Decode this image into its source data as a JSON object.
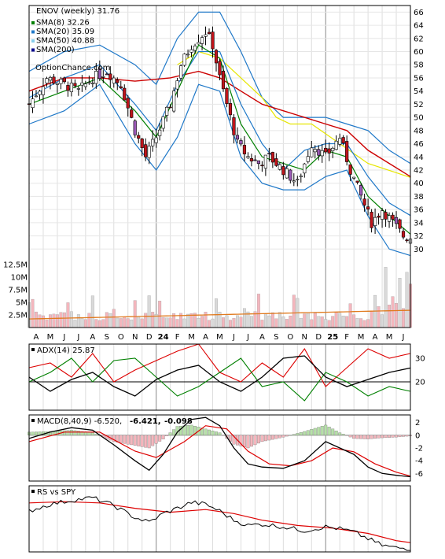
{
  "chart_data": [
    {
      "type": "candlestick",
      "panel": "price",
      "title": "ENOV (weekly) 31.76",
      "watermark": "OptionChance.com",
      "legend": [
        {
          "label": "SMA(8) 32.26",
          "color": "#008000"
        },
        {
          "label": "SMA(20) 35.09",
          "color": "#1f78c8"
        },
        {
          "label": "SMA(50) 40.88",
          "color": "#87ceeb"
        },
        {
          "label": "SMA(200)",
          "color": "#00008b"
        }
      ],
      "legend_placement": "top-left",
      "y_ticks": [
        30,
        32,
        34,
        36,
        38,
        40,
        42,
        44,
        46,
        48,
        50,
        52,
        54,
        56,
        58,
        60,
        62,
        64,
        66
      ],
      "ylim": [
        28,
        67
      ],
      "x_labels": [
        "A",
        "M",
        "J",
        "J",
        "A",
        "S",
        "O",
        "N",
        "D",
        "24",
        "F",
        "M",
        "A",
        "M",
        "J",
        "J",
        "A",
        "S",
        "O",
        "N",
        "D",
        "25",
        "F",
        "M",
        "A",
        "M",
        "J"
      ],
      "close_series": [
        [
          0,
          52
        ],
        [
          5,
          56
        ],
        [
          10,
          55
        ],
        [
          14,
          54
        ],
        [
          18,
          56
        ],
        [
          22,
          57
        ],
        [
          26,
          55
        ],
        [
          30,
          48
        ],
        [
          33,
          44
        ],
        [
          36,
          47
        ],
        [
          40,
          52
        ],
        [
          43,
          58
        ],
        [
          46,
          61
        ],
        [
          48,
          62
        ],
        [
          50,
          63
        ],
        [
          52,
          61
        ],
        [
          54,
          56
        ],
        [
          56,
          52
        ],
        [
          59,
          46
        ],
        [
          62,
          44
        ],
        [
          65,
          43
        ],
        [
          68,
          44
        ],
        [
          72,
          42
        ],
        [
          76,
          40
        ],
        [
          80,
          46
        ],
        [
          84,
          44
        ],
        [
          88,
          47
        ],
        [
          91,
          42
        ],
        [
          94,
          38
        ],
        [
          97,
          34
        ],
        [
          100,
          36
        ],
        [
          103,
          34
        ],
        [
          106,
          32
        ],
        [
          108,
          31.76
        ]
      ],
      "sma8_series": [
        [
          0,
          52
        ],
        [
          10,
          54
        ],
        [
          20,
          56
        ],
        [
          30,
          51
        ],
        [
          36,
          47
        ],
        [
          42,
          54
        ],
        [
          48,
          61
        ],
        [
          54,
          59
        ],
        [
          60,
          49
        ],
        [
          66,
          44
        ],
        [
          72,
          43
        ],
        [
          78,
          42
        ],
        [
          84,
          45
        ],
        [
          90,
          44
        ],
        [
          96,
          38
        ],
        [
          102,
          35
        ],
        [
          108,
          32.26
        ]
      ],
      "sma20_series": [
        [
          0,
          53
        ],
        [
          10,
          56
        ],
        [
          20,
          58
        ],
        [
          30,
          52
        ],
        [
          36,
          48
        ],
        [
          42,
          55
        ],
        [
          48,
          60
        ],
        [
          54,
          60
        ],
        [
          60,
          52
        ],
        [
          66,
          46
        ],
        [
          72,
          42
        ],
        [
          78,
          45
        ],
        [
          84,
          46
        ],
        [
          90,
          46
        ],
        [
          96,
          41
        ],
        [
          102,
          37
        ],
        [
          108,
          35.09
        ]
      ],
      "bb_upper_series": [
        [
          0,
          57
        ],
        [
          10,
          60
        ],
        [
          20,
          61
        ],
        [
          30,
          58
        ],
        [
          36,
          55
        ],
        [
          42,
          62
        ],
        [
          48,
          66
        ],
        [
          54,
          66
        ],
        [
          60,
          60
        ],
        [
          66,
          53
        ],
        [
          72,
          50
        ],
        [
          78,
          50
        ],
        [
          84,
          50
        ],
        [
          90,
          49
        ],
        [
          96,
          48
        ],
        [
          102,
          45
        ],
        [
          108,
          43
        ]
      ],
      "bb_lower_series": [
        [
          0,
          49
        ],
        [
          10,
          51
        ],
        [
          20,
          55
        ],
        [
          30,
          46
        ],
        [
          36,
          42
        ],
        [
          42,
          47
        ],
        [
          48,
          55
        ],
        [
          54,
          54
        ],
        [
          60,
          44
        ],
        [
          66,
          40
        ],
        [
          72,
          39
        ],
        [
          78,
          39
        ],
        [
          84,
          41
        ],
        [
          90,
          42
        ],
        [
          96,
          35
        ],
        [
          102,
          30
        ],
        [
          108,
          29
        ]
      ],
      "sma50_series": [
        [
          42,
          58
        ],
        [
          48,
          60
        ],
        [
          54,
          59
        ],
        [
          60,
          56
        ],
        [
          66,
          53
        ],
        [
          70,
          50
        ],
        [
          74,
          49
        ],
        [
          80,
          49
        ],
        [
          88,
          46
        ],
        [
          96,
          43
        ],
        [
          108,
          40.88
        ]
      ],
      "sma_red_series": [
        [
          0,
          54
        ],
        [
          10,
          56
        ],
        [
          20,
          56
        ],
        [
          30,
          55.5
        ],
        [
          40,
          56
        ],
        [
          48,
          57
        ],
        [
          54,
          56
        ],
        [
          60,
          54
        ],
        [
          66,
          52
        ],
        [
          72,
          51
        ],
        [
          78,
          50
        ],
        [
          84,
          49
        ],
        [
          90,
          48
        ],
        [
          96,
          45
        ],
        [
          102,
          43
        ],
        [
          108,
          41
        ]
      ],
      "volume_panel": {
        "y_ticks": [
          "2.5M",
          "5M",
          "7.5M",
          "10M",
          "12.5M"
        ],
        "y_tick_values": [
          2.5,
          5,
          7.5,
          10,
          12.5
        ],
        "ylim": [
          0,
          13
        ]
      },
      "grid": true
    },
    {
      "type": "line",
      "panel": "adx",
      "legend": [
        "ADX(14) 25.87"
      ],
      "y_ticks": [
        20,
        30
      ],
      "ylim": [
        8,
        36
      ],
      "adx_series": [
        [
          0,
          22
        ],
        [
          6,
          16
        ],
        [
          12,
          21
        ],
        [
          18,
          24
        ],
        [
          24,
          18
        ],
        [
          30,
          14
        ],
        [
          36,
          21
        ],
        [
          42,
          25
        ],
        [
          48,
          27
        ],
        [
          54,
          20
        ],
        [
          60,
          16
        ],
        [
          66,
          22
        ],
        [
          72,
          30
        ],
        [
          78,
          31
        ],
        [
          84,
          22
        ],
        [
          90,
          18
        ],
        [
          96,
          21
        ],
        [
          102,
          24
        ],
        [
          108,
          25.87
        ]
      ],
      "plus_di_series": [
        [
          0,
          26
        ],
        [
          6,
          28
        ],
        [
          12,
          22
        ],
        [
          18,
          32
        ],
        [
          24,
          20
        ],
        [
          30,
          25
        ],
        [
          36,
          29
        ],
        [
          42,
          33
        ],
        [
          48,
          36
        ],
        [
          54,
          24
        ],
        [
          60,
          20
        ],
        [
          66,
          28
        ],
        [
          72,
          22
        ],
        [
          78,
          34
        ],
        [
          84,
          18
        ],
        [
          90,
          26
        ],
        [
          96,
          34
        ],
        [
          102,
          30
        ],
        [
          108,
          32
        ]
      ],
      "minus_di_series": [
        [
          0,
          20
        ],
        [
          6,
          24
        ],
        [
          12,
          30
        ],
        [
          18,
          20
        ],
        [
          24,
          29
        ],
        [
          30,
          30
        ],
        [
          36,
          22
        ],
        [
          42,
          14
        ],
        [
          48,
          18
        ],
        [
          54,
          24
        ],
        [
          60,
          30
        ],
        [
          66,
          18
        ],
        [
          72,
          20
        ],
        [
          78,
          12
        ],
        [
          84,
          24
        ],
        [
          90,
          20
        ],
        [
          96,
          14
        ],
        [
          102,
          18
        ],
        [
          108,
          16
        ]
      ]
    },
    {
      "type": "bar",
      "panel": "macd",
      "legend": [
        "MACD(8,40,9) -6.520,",
        "-6.421,",
        "-0.098"
      ],
      "legend_colors": [
        "#000000",
        "#ff0000",
        "#1f78c8"
      ],
      "y_ticks": [
        -6,
        -4,
        -2,
        0,
        2
      ],
      "ylim": [
        -7.2,
        3.2
      ],
      "macd_series": [
        [
          0,
          -0.5
        ],
        [
          6,
          0.5
        ],
        [
          12,
          1.2
        ],
        [
          18,
          0.8
        ],
        [
          24,
          -1.5
        ],
        [
          30,
          -4
        ],
        [
          34,
          -5.5
        ],
        [
          38,
          -3
        ],
        [
          42,
          0.5
        ],
        [
          46,
          2.5
        ],
        [
          50,
          2.8
        ],
        [
          54,
          1.5
        ],
        [
          58,
          -2
        ],
        [
          62,
          -4.5
        ],
        [
          66,
          -5
        ],
        [
          72,
          -5.2
        ],
        [
          78,
          -4
        ],
        [
          84,
          -1
        ],
        [
          88,
          -2
        ],
        [
          92,
          -3
        ],
        [
          96,
          -5
        ],
        [
          100,
          -6
        ],
        [
          104,
          -6.3
        ],
        [
          108,
          -6.52
        ]
      ],
      "signal_series": [
        [
          0,
          -1
        ],
        [
          10,
          0.5
        ],
        [
          20,
          0.5
        ],
        [
          30,
          -2.5
        ],
        [
          36,
          -3.5
        ],
        [
          44,
          -1
        ],
        [
          50,
          1.5
        ],
        [
          56,
          1
        ],
        [
          62,
          -2.5
        ],
        [
          68,
          -4.5
        ],
        [
          74,
          -4.8
        ],
        [
          80,
          -4
        ],
        [
          86,
          -2
        ],
        [
          92,
          -2.6
        ],
        [
          98,
          -4.5
        ],
        [
          104,
          -5.8
        ],
        [
          108,
          -6.42
        ]
      ],
      "histogram_series": [
        [
          0,
          0.5
        ],
        [
          6,
          0.6
        ],
        [
          12,
          0.8
        ],
        [
          18,
          0.4
        ],
        [
          24,
          -1
        ],
        [
          30,
          -1.6
        ],
        [
          34,
          -2
        ],
        [
          38,
          -0.6
        ],
        [
          42,
          1.4
        ],
        [
          46,
          1.6
        ],
        [
          50,
          1
        ],
        [
          54,
          0.4
        ],
        [
          58,
          -1.4
        ],
        [
          62,
          -2
        ],
        [
          66,
          -1
        ],
        [
          72,
          -0.3
        ],
        [
          78,
          0.6
        ],
        [
          84,
          1.6
        ],
        [
          88,
          0.4
        ],
        [
          92,
          -0.5
        ],
        [
          96,
          -0.6
        ],
        [
          100,
          -0.4
        ],
        [
          104,
          -0.3
        ],
        [
          108,
          -0.1
        ]
      ]
    },
    {
      "type": "line",
      "panel": "relative-strength",
      "legend": [
        "RS vs SPY"
      ],
      "rs_series": [
        [
          0,
          0.62
        ],
        [
          6,
          0.72
        ],
        [
          12,
          0.78
        ],
        [
          18,
          0.82
        ],
        [
          24,
          0.7
        ],
        [
          30,
          0.52
        ],
        [
          34,
          0.45
        ],
        [
          38,
          0.58
        ],
        [
          42,
          0.66
        ],
        [
          46,
          0.75
        ],
        [
          50,
          0.72
        ],
        [
          54,
          0.62
        ],
        [
          58,
          0.48
        ],
        [
          62,
          0.4
        ],
        [
          66,
          0.42
        ],
        [
          72,
          0.38
        ],
        [
          78,
          0.32
        ],
        [
          84,
          0.38
        ],
        [
          88,
          0.35
        ],
        [
          92,
          0.3
        ],
        [
          96,
          0.2
        ],
        [
          100,
          0.1
        ],
        [
          104,
          0.06
        ],
        [
          108,
          0.05
        ]
      ],
      "rs_ma_series": [
        [
          0,
          0.74
        ],
        [
          10,
          0.76
        ],
        [
          20,
          0.74
        ],
        [
          30,
          0.66
        ],
        [
          40,
          0.6
        ],
        [
          50,
          0.64
        ],
        [
          58,
          0.58
        ],
        [
          66,
          0.48
        ],
        [
          76,
          0.4
        ],
        [
          86,
          0.36
        ],
        [
          96,
          0.28
        ],
        [
          104,
          0.17
        ],
        [
          108,
          0.14
        ]
      ]
    }
  ]
}
